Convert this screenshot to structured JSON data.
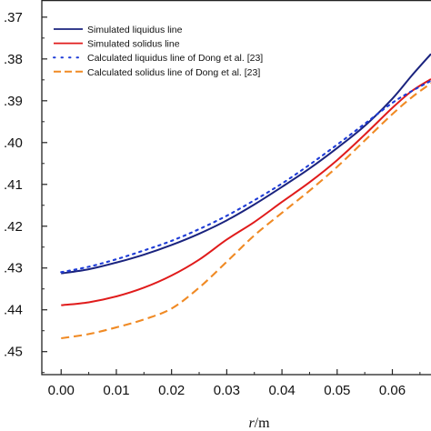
{
  "chart_data": {
    "type": "line",
    "xlabel_var": "r",
    "xlabel_unit": "/m",
    "xlim": [
      -0.0035,
      0.067
    ],
    "ylim": [
      0.3659,
      0.4555
    ],
    "y_inverted": true,
    "x_ticks": [
      0.0,
      0.01,
      0.02,
      0.03,
      0.04,
      0.05,
      0.06
    ],
    "x_tick_labels": [
      "0.00",
      "0.01",
      "0.02",
      "0.03",
      "0.04",
      "0.05",
      "0.06"
    ],
    "y_ticks": [
      0.37,
      0.38,
      0.39,
      0.4,
      0.41,
      0.42,
      0.43,
      0.44,
      0.45
    ],
    "y_tick_labels": [
      ".37",
      ".38",
      ".39",
      ".40",
      ".41",
      ".42",
      ".43",
      ".44",
      ".45"
    ],
    "grid": false,
    "legend_position": "top-left",
    "series": [
      {
        "name": "Simulated liquidus line",
        "color": "#1a237e",
        "style": "solid",
        "x": [
          0.0,
          0.005,
          0.01,
          0.015,
          0.02,
          0.025,
          0.03,
          0.035,
          0.04,
          0.045,
          0.05,
          0.055,
          0.06,
          0.0635,
          0.067
        ],
        "y": [
          0.4313,
          0.4303,
          0.4287,
          0.4268,
          0.4245,
          0.4218,
          0.4186,
          0.4148,
          0.4106,
          0.4062,
          0.4013,
          0.396,
          0.3895,
          0.384,
          0.3788
        ]
      },
      {
        "name": "Simulated solidus line",
        "color": "#e01b1b",
        "style": "solid",
        "x": [
          0.0,
          0.005,
          0.01,
          0.015,
          0.02,
          0.025,
          0.03,
          0.035,
          0.04,
          0.045,
          0.05,
          0.055,
          0.06,
          0.0635,
          0.067
        ],
        "y": [
          0.4389,
          0.4382,
          0.4368,
          0.4347,
          0.4318,
          0.428,
          0.4232,
          0.419,
          0.4142,
          0.4095,
          0.4042,
          0.3981,
          0.3917,
          0.3877,
          0.3848
        ]
      },
      {
        "name": "Calculated liquidus line of Dong et al. [23]",
        "color": "#1e3cd7",
        "style": "dotted",
        "x": [
          0.0,
          0.005,
          0.01,
          0.015,
          0.02,
          0.025,
          0.03,
          0.035,
          0.04,
          0.045,
          0.05,
          0.055,
          0.06,
          0.0635,
          0.067
        ],
        "y": [
          0.431,
          0.4297,
          0.4279,
          0.4258,
          0.4235,
          0.4207,
          0.4175,
          0.4138,
          0.4098,
          0.4053,
          0.4005,
          0.3955,
          0.3905,
          0.3877,
          0.3852
        ]
      },
      {
        "name": "Calculated solidus line of Dong et al. [23]",
        "color": "#f08a24",
        "style": "dashed",
        "x": [
          0.0,
          0.005,
          0.01,
          0.015,
          0.02,
          0.025,
          0.03,
          0.035,
          0.04,
          0.045,
          0.05,
          0.055,
          0.06,
          0.0635,
          0.067
        ],
        "y": [
          0.4468,
          0.4458,
          0.4442,
          0.4423,
          0.4397,
          0.4347,
          0.4285,
          0.4222,
          0.4168,
          0.4115,
          0.4058,
          0.3995,
          0.3932,
          0.3892,
          0.3858
        ]
      }
    ]
  }
}
